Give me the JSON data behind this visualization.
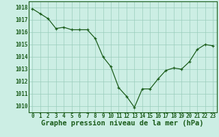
{
  "x": [
    0,
    1,
    2,
    3,
    4,
    5,
    6,
    7,
    8,
    9,
    10,
    11,
    12,
    13,
    14,
    15,
    16,
    17,
    18,
    19,
    20,
    21,
    22,
    23
  ],
  "y": [
    1017.9,
    1017.5,
    1017.1,
    1016.3,
    1016.4,
    1016.2,
    1016.2,
    1016.2,
    1015.5,
    1014.0,
    1013.2,
    1011.5,
    1010.8,
    1009.9,
    1011.4,
    1011.4,
    1012.2,
    1012.9,
    1013.1,
    1013.0,
    1013.6,
    1014.6,
    1015.0,
    1014.9
  ],
  "ylim": [
    1009.5,
    1018.5
  ],
  "yticks": [
    1010,
    1011,
    1012,
    1013,
    1014,
    1015,
    1016,
    1017,
    1018
  ],
  "xticks": [
    0,
    1,
    2,
    3,
    4,
    5,
    6,
    7,
    8,
    9,
    10,
    11,
    12,
    13,
    14,
    15,
    16,
    17,
    18,
    19,
    20,
    21,
    22,
    23
  ],
  "xlabel": "Graphe pression niveau de la mer (hPa)",
  "line_color": "#1a5c1a",
  "marker": "+",
  "marker_size": 3.5,
  "bg_color": "#cceee4",
  "grid_color": "#99ccbb",
  "ytick_fontsize": 5.5,
  "xtick_fontsize": 5.5,
  "xlabel_fontsize": 7.5
}
